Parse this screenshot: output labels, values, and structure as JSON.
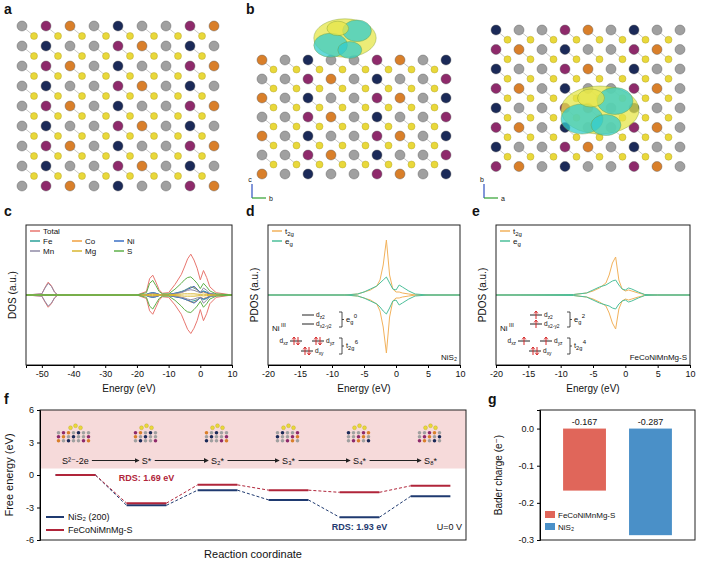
{
  "figure": {
    "panel_labels": [
      "a",
      "b",
      "c",
      "d",
      "e",
      "f",
      "g"
    ],
    "b_axes": [
      [
        "c",
        "b"
      ],
      [
        "b",
        "a"
      ]
    ]
  },
  "chart_data": [
    {
      "type": "line",
      "x": [
        -55,
        -50,
        -49,
        -48,
        -47,
        -46,
        -45,
        -40,
        -20,
        -17,
        -16,
        -15,
        -14,
        -13,
        -12,
        -10,
        -8,
        -6,
        -5,
        -4,
        -3,
        -2,
        -1,
        0,
        1,
        2,
        3,
        5,
        10
      ],
      "xlim": [
        -55,
        10
      ],
      "xticks": [
        -50,
        -40,
        -30,
        -20,
        -10,
        0,
        10
      ],
      "ylim": [
        -12,
        12
      ],
      "yticks": [],
      "tick_labels": "x",
      "x_label": "Energy (eV)",
      "y_label": "DOS (a.u.)",
      "legend": "upper left",
      "series": [
        {
          "name": "Total",
          "color": "#e8766f",
          "values": [
            0,
            0.2,
            1.3,
            2.2,
            1.6,
            0.5,
            0,
            0,
            0,
            0.6,
            2.8,
            3.4,
            2.2,
            0.9,
            0.3,
            0.4,
            1.8,
            3.5,
            4.8,
            6.2,
            7.0,
            6.0,
            4.6,
            2.6,
            4.2,
            3.0,
            1.4,
            0.4,
            0
          ],
          "values_down": [
            0,
            -0.2,
            -1.2,
            -2.1,
            -1.5,
            -0.5,
            0,
            0,
            0,
            -0.6,
            -2.7,
            -3.3,
            -2.1,
            -0.9,
            -0.3,
            -0.4,
            -1.7,
            -3.3,
            -4.6,
            -5.9,
            -6.6,
            -5.7,
            -4.4,
            -2.5,
            -4.4,
            -3.2,
            -1.5,
            -0.4,
            0
          ]
        },
        {
          "name": "Fe",
          "color": "#2aa198",
          "values": [
            0,
            0,
            0,
            0,
            0,
            0,
            0,
            0,
            0,
            0.1,
            0.3,
            0.4,
            0.3,
            0.1,
            0,
            0.1,
            0.3,
            0.6,
            0.8,
            1.1,
            1.4,
            1.2,
            0.9,
            0.5,
            0.7,
            0.5,
            0.2,
            0.1,
            0
          ],
          "values_down": [
            0,
            0,
            0,
            0,
            0,
            0,
            0,
            0,
            0,
            -0.1,
            -0.3,
            -0.4,
            -0.3,
            -0.1,
            0,
            -0.1,
            -0.3,
            -0.5,
            -0.7,
            -0.9,
            -1.1,
            -1.0,
            -0.8,
            -0.5,
            -0.8,
            -0.6,
            -0.3,
            -0.1,
            0
          ]
        },
        {
          "name": "Co",
          "color": "#f0a040",
          "values": [
            0,
            0,
            0,
            0,
            0,
            0,
            0,
            0,
            0,
            0.1,
            0.2,
            0.3,
            0.2,
            0.1,
            0,
            0.1,
            0.2,
            0.5,
            0.7,
            1.0,
            1.3,
            1.4,
            0.9,
            0.4,
            0.5,
            0.3,
            0.2,
            0,
            0
          ],
          "values_down": [
            0,
            0,
            0,
            0,
            0,
            0,
            0,
            0,
            0,
            -0.1,
            -0.2,
            -0.3,
            -0.2,
            -0.1,
            0,
            -0.1,
            -0.2,
            -0.4,
            -0.6,
            -0.9,
            -1.2,
            -1.3,
            -0.9,
            -0.4,
            -0.6,
            -0.4,
            -0.2,
            0,
            0
          ]
        },
        {
          "name": "Ni",
          "color": "#3b6fc4",
          "values": [
            0,
            0,
            0,
            0,
            0,
            0,
            0,
            0,
            0,
            0.1,
            0.3,
            0.4,
            0.3,
            0.1,
            0,
            0.1,
            0.3,
            0.5,
            0.7,
            1.0,
            1.2,
            1.5,
            1.0,
            0.4,
            0.6,
            0.4,
            0.2,
            0.1,
            0
          ],
          "values_down": [
            0,
            0,
            0,
            0,
            0,
            0,
            0,
            0,
            0,
            -0.1,
            -0.3,
            -0.4,
            -0.3,
            -0.1,
            0,
            -0.1,
            -0.3,
            -0.5,
            -0.7,
            -0.9,
            -1.1,
            -1.4,
            -1.0,
            -0.4,
            -0.7,
            -0.5,
            -0.2,
            -0.1,
            0
          ]
        },
        {
          "name": "Mn",
          "color": "#8f8aa6",
          "values": [
            0,
            0.2,
            1.2,
            2.0,
            1.5,
            0.5,
            0,
            0,
            0,
            0.1,
            0.2,
            0.3,
            0.2,
            0.1,
            0,
            0.1,
            0.2,
            0.4,
            0.6,
            0.8,
            0.9,
            0.8,
            0.6,
            0.4,
            1.2,
            0.8,
            0.3,
            0.1,
            0
          ],
          "values_down": [
            0,
            -0.2,
            -1.1,
            -1.9,
            -1.4,
            -0.5,
            0,
            0,
            0,
            -0.1,
            -0.2,
            -0.3,
            -0.2,
            -0.1,
            0,
            -0.1,
            -0.2,
            -0.4,
            -0.5,
            -0.7,
            -0.8,
            -0.7,
            -0.5,
            -0.4,
            -1.4,
            -0.9,
            -0.3,
            -0.1,
            0
          ]
        },
        {
          "name": "Mg",
          "color": "#d9b630",
          "values": [
            0,
            0,
            0,
            0,
            0,
            0,
            0,
            0,
            0,
            0.05,
            0.1,
            0.1,
            0.1,
            0.05,
            0,
            0.05,
            0.1,
            0.15,
            0.2,
            0.2,
            0.2,
            0.2,
            0.15,
            0.1,
            0.15,
            0.1,
            0.05,
            0,
            0
          ],
          "values_down": [
            0,
            0,
            0,
            0,
            0,
            0,
            0,
            0,
            0,
            -0.05,
            -0.1,
            -0.1,
            -0.1,
            -0.05,
            0,
            -0.05,
            -0.1,
            -0.15,
            -0.2,
            -0.2,
            -0.2,
            -0.2,
            -0.15,
            -0.1,
            -0.15,
            -0.1,
            -0.05,
            0,
            0
          ]
        },
        {
          "name": "S",
          "color": "#5fb04a",
          "values": [
            0,
            0,
            0,
            0,
            0,
            0,
            0,
            0,
            0,
            0.4,
            2.0,
            2.5,
            1.6,
            0.6,
            0.2,
            0.2,
            1.0,
            2.0,
            2.6,
            3.0,
            3.1,
            2.6,
            2.0,
            1.1,
            2.0,
            1.4,
            0.7,
            0.2,
            0
          ],
          "values_down": [
            0,
            0,
            0,
            0,
            0,
            0,
            0,
            0,
            0,
            -0.4,
            -1.9,
            -2.4,
            -1.5,
            -0.6,
            -0.2,
            -0.2,
            -0.9,
            -1.9,
            -2.5,
            -2.9,
            -3.0,
            -2.5,
            -1.9,
            -1.1,
            -2.1,
            -1.5,
            -0.7,
            -0.2,
            0
          ]
        }
      ]
    },
    {
      "type": "line",
      "x": [
        -20,
        -8,
        -6,
        -5,
        -4,
        -3,
        -2.5,
        -2,
        -1.5,
        -1,
        -0.5,
        0,
        0.5,
        1,
        2,
        3,
        5,
        10
      ],
      "xlim": [
        -20,
        10
      ],
      "xticks": [
        -20,
        -15,
        -10,
        -5,
        0,
        5,
        10
      ],
      "ylim": [
        -7,
        7
      ],
      "yticks": [],
      "tick_labels": "x",
      "x_label": "Energy (eV)",
      "y_label": "PDOS (a.u.)",
      "legend": "upper left",
      "sample_label": "NiS₂",
      "series": [
        {
          "name": "t2g",
          "color": "#f2b25c",
          "values": [
            0,
            0,
            0.1,
            0.3,
            0.5,
            0.9,
            1.5,
            3.0,
            5.5,
            2.0,
            0.6,
            0.3,
            0.3,
            0.2,
            0.1,
            0,
            0,
            0
          ],
          "values_down": [
            0,
            0,
            -0.1,
            -0.3,
            -0.5,
            -0.9,
            -1.6,
            -3.2,
            -5.8,
            -2.2,
            -0.6,
            -0.3,
            -0.3,
            -0.2,
            -0.1,
            0,
            0,
            0
          ]
        },
        {
          "name": "eg",
          "color": "#4dbf9a",
          "values": [
            0,
            0,
            0.1,
            0.3,
            0.6,
            0.9,
            1.2,
            1.5,
            1.8,
            1.2,
            0.6,
            0.5,
            1.0,
            0.8,
            0.4,
            0.1,
            0,
            0
          ],
          "values_down": [
            0,
            0,
            -0.1,
            -0.3,
            -0.6,
            -0.9,
            -1.2,
            -1.6,
            -1.9,
            -1.3,
            -0.6,
            -0.5,
            -1.0,
            -0.8,
            -0.4,
            -0.1,
            0,
            0
          ]
        }
      ],
      "inset": {
        "ion": "Ni",
        "ion_charge": "III",
        "groups": [
          {
            "label": "eg",
            "electrons": 0,
            "orbitals": [
              {
                "label": "dz2",
                "electrons": 0
              },
              {
                "label": "dx2-y2",
                "electrons": 0
              }
            ]
          },
          {
            "label": "t2g",
            "electrons": 6,
            "orbitals": [
              {
                "label": "dxz",
                "electrons": 2
              },
              {
                "label": "dyz",
                "electrons": 2
              },
              {
                "label": "dxy",
                "electrons": 2
              }
            ]
          }
        ]
      }
    },
    {
      "type": "line",
      "x": [
        -20,
        -8,
        -6,
        -5,
        -4,
        -3,
        -2.5,
        -2,
        -1.5,
        -1,
        -0.5,
        0,
        0.5,
        1,
        2,
        3,
        5,
        10
      ],
      "xlim": [
        -20,
        10
      ],
      "xticks": [
        -20,
        -15,
        -10,
        -5,
        0,
        5,
        10
      ],
      "ylim": [
        -7,
        7
      ],
      "yticks": [],
      "tick_labels": "x",
      "x_label": "Energy (eV)",
      "y_label": "PDOS (a.u.)",
      "legend": "upper left",
      "sample_label": "FeCoNiMnMg-S",
      "series": [
        {
          "name": "t2g",
          "color": "#f2b25c",
          "values": [
            0,
            0.05,
            0.2,
            0.4,
            0.7,
            1.2,
            2.0,
            3.2,
            3.8,
            1.5,
            0.6,
            0.4,
            0.5,
            0.4,
            0.2,
            0.05,
            0,
            0
          ],
          "values_down": [
            0,
            -0.05,
            -0.2,
            -0.4,
            -0.7,
            -1.1,
            -1.8,
            -2.8,
            -3.4,
            -1.4,
            -0.6,
            -0.4,
            -0.5,
            -0.4,
            -0.2,
            -0.05,
            0,
            0
          ]
        },
        {
          "name": "eg",
          "color": "#4dbf9a",
          "values": [
            0,
            0.05,
            0.2,
            0.5,
            0.8,
            1.0,
            1.2,
            1.4,
            1.5,
            1.0,
            0.6,
            0.5,
            0.7,
            0.6,
            0.3,
            0.05,
            0,
            0
          ],
          "values_down": [
            0,
            -0.05,
            -0.2,
            -0.5,
            -0.8,
            -1.0,
            -1.1,
            -1.3,
            -1.4,
            -0.9,
            -0.6,
            -0.5,
            -0.7,
            -0.6,
            -0.3,
            -0.05,
            0,
            0
          ]
        }
      ],
      "inset": {
        "ion": "Ni",
        "ion_charge": "III",
        "groups": [
          {
            "label": "eg",
            "electrons": 2,
            "orbitals": [
              {
                "label": "dz2",
                "electrons": 1
              },
              {
                "label": "dx2-y2",
                "electrons": 1
              }
            ]
          },
          {
            "label": "t2g",
            "electrons": 4,
            "orbitals": [
              {
                "label": "dxz",
                "electrons": 1
              },
              {
                "label": "dyz",
                "electrons": 1
              },
              {
                "label": "dxy",
                "electrons": 2
              }
            ]
          }
        ]
      }
    },
    {
      "type": "step",
      "categories": [
        "S²⁻-2e",
        "S*",
        "S₂*",
        "S₃*",
        "S₄*",
        "S₈*"
      ],
      "ylim": [
        -6,
        6
      ],
      "yticks": [
        -6,
        -3,
        0,
        3,
        6
      ],
      "x_label": "Reaction coordinate",
      "y_label": "Free energy (eV)",
      "legend": "lower left",
      "shaded_band": [
        0.6,
        6
      ],
      "annotations": [
        "U=0 V"
      ],
      "series": [
        {
          "name": "NiS₂ (200)",
          "color": "#1f3a70",
          "values": [
            0,
            -2.8,
            -1.4,
            -2.3,
            -3.9,
            -1.97
          ],
          "rds_label": "RDS: 1.93 eV"
        },
        {
          "name": "FeCoNiMnMg-S",
          "color": "#b0253a",
          "values": [
            0,
            -2.6,
            -0.91,
            -1.4,
            -1.6,
            -1.0
          ],
          "rds_label": "RDS: 1.69 eV"
        }
      ]
    },
    {
      "type": "bar",
      "categories": [
        "FeCoNiMnMg-S",
        "NiS₂"
      ],
      "values": [
        -0.167,
        -0.287
      ],
      "colors": [
        "#e0665a",
        "#4a90c8"
      ],
      "ylim": [
        -0.3,
        0.05
      ],
      "yticks": [
        {
          "value": 0,
          "label": "0.0"
        },
        -0.1,
        -0.2,
        -0.3
      ],
      "y_label": "Bader charge (e⁻)",
      "data_labels": true,
      "legend": "lower left",
      "tick_labels": "y"
    }
  ]
}
